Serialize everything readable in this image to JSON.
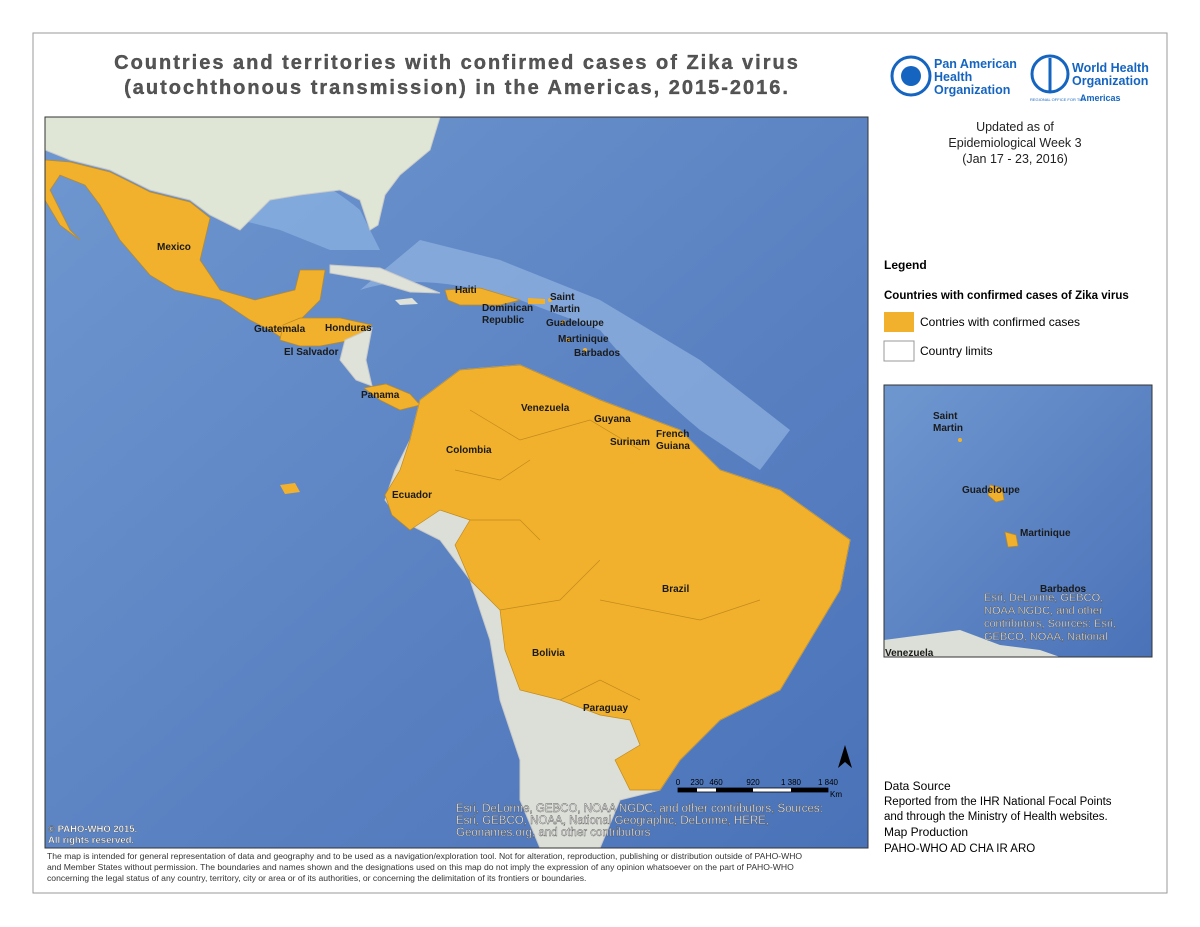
{
  "header": {
    "title_lines": [
      "Countries and territories with confirmed cases of Zika virus",
      "(autochthonous transmission) in the Americas, 2015-2016."
    ],
    "paho": [
      "Pan American",
      "Health",
      "Organization"
    ],
    "who": [
      "World Health",
      "Organization"
    ],
    "who_region": "REGIONAL OFFICE FOR THE",
    "who_region_name": "Americas"
  },
  "update": [
    "Updated as of",
    "Epidemiological Week 3",
    "(Jan 17 - 23, 2016)"
  ],
  "legend": {
    "title": "Legend",
    "subtitle": "Countries with confirmed cases of Zika virus",
    "items": [
      "Contries with confirmed cases",
      "Country limits"
    ]
  },
  "map": {
    "labels": [
      [
        "Mexico"
      ],
      [
        "Haiti"
      ],
      [
        "Dominican",
        "Republic"
      ],
      [
        "Saint",
        "Martin"
      ],
      [
        "Guadeloupe"
      ],
      [
        "Martinique"
      ],
      [
        "Barbados"
      ],
      [
        "Guatemala"
      ],
      [
        "Honduras"
      ],
      [
        "El Salvador"
      ],
      [
        "Panama"
      ],
      [
        "Venezuela"
      ],
      [
        "Guyana"
      ],
      [
        "Surinam"
      ],
      [
        "French",
        "Guiana"
      ],
      [
        "Colombia"
      ],
      [
        "Ecuador"
      ],
      [
        "Brazil"
      ],
      [
        "Bolivia"
      ],
      [
        "Paraguay"
      ]
    ],
    "scale": [
      "0",
      "230",
      "460",
      "920",
      "1 380",
      "1 840"
    ],
    "scale_unit": "Km",
    "attribution": [
      "Esri, DeLorme, GEBCO, NOAA NGDC, and other contributors, Sources:",
      "Esri, GEBCO, NOAA, National Geographic, DeLorme, HERE,",
      "Geonames.org, and other contributors"
    ],
    "copyright": [
      "© PAHO-WHO 2015.",
      "All rights reserved."
    ]
  },
  "inset": {
    "labels": [
      [
        "Saint",
        "Martin"
      ],
      [
        "Guadeloupe"
      ],
      [
        "Martinique"
      ],
      [
        "Barbados"
      ],
      [
        "Venezuela"
      ]
    ],
    "attribution": [
      "Esri, DeLorme, GEBCO,",
      "NOAA NGDC, and other",
      "contributors, Sources: Esri,",
      "GEBCO, NOAA, National"
    ]
  },
  "sources": {
    "data_source_label": "Data Source",
    "data_source": [
      "Reported from the IHR National Focal Points",
      "and through the Ministry of Health websites."
    ],
    "production_label": "Map Production",
    "production": "PAHO-WHO AD CHA IR ARO"
  },
  "disclaimer": [
    "The map is intended for general representation of data and geography and to be used as a navigation/exploration tool. Not for alteration, reproduction, publishing or distribution outside of PAHO-WHO",
    "and Member States without permission. The boundaries and names shown and the designations used on this map do not imply the expression of any opinion whatsoever on the part of PAHO-WHO",
    "concerning the legal status of any country, territory, city or area or of its authorities, or concerning the delimitation of its frontiers or boundaries."
  ]
}
